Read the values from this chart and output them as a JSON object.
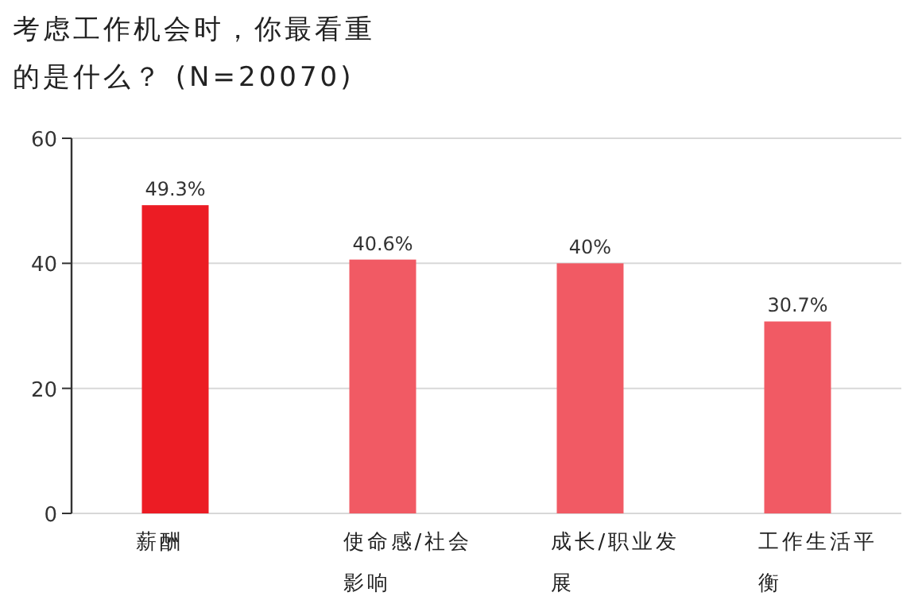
{
  "chart_data": {
    "type": "bar",
    "title": "考虑工作机会时，你最看重的是什么？ (N=20070)",
    "categories": [
      "薪酬",
      "使命感/社会影响",
      "成长/职业发展",
      "工作生活平衡"
    ],
    "values": [
      49.3,
      40.6,
      40,
      30.7
    ],
    "colors": [
      "#ec1c24",
      "#f15a64",
      "#f15a64",
      "#f15a64"
    ],
    "value_labels": [
      "49.3%",
      "40.6%",
      "40%",
      "30.7%"
    ],
    "ylim": [
      0,
      60
    ],
    "yticks": [
      0,
      20,
      40,
      60
    ],
    "grid": "y"
  }
}
